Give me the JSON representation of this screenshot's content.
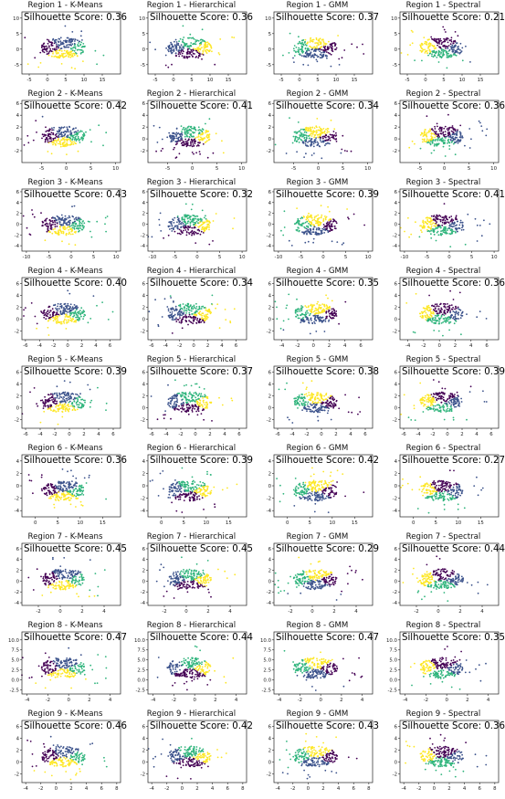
{
  "colors": {
    "purple": "#440154",
    "blue": "#3b528b",
    "green": "#2fb47c",
    "yellow": "#fde725"
  },
  "chart_data": [
    {
      "type": "scatter",
      "title": "Region 1 - K-Means",
      "score_label": "Silhouette Score: 0.36",
      "xticks": [
        "-5",
        "0",
        "5",
        "10",
        "15"
      ],
      "yticks": [
        "-5",
        "0",
        "5",
        "10"
      ],
      "xlim": [
        -7,
        20
      ],
      "ylim": [
        -8,
        12
      ]
    },
    {
      "type": "scatter",
      "title": "Region 1 - Hierarchical",
      "score_label": "Silhouette Score: 0.36",
      "xticks": [
        "-5",
        "0",
        "5",
        "10",
        "15"
      ],
      "yticks": [
        "-5",
        "0",
        "5",
        "10"
      ],
      "xlim": [
        -7,
        20
      ],
      "ylim": [
        -8,
        12
      ]
    },
    {
      "type": "scatter",
      "title": "Region 1 - GMM",
      "score_label": "Silhouette Score: 0.37",
      "xticks": [
        "-5",
        "0",
        "5",
        "10",
        "15"
      ],
      "yticks": [
        "-5",
        "0",
        "5",
        "10"
      ],
      "xlim": [
        -7,
        20
      ],
      "ylim": [
        -8,
        12
      ]
    },
    {
      "type": "scatter",
      "title": "Region 1 - Spectral",
      "score_label": "Silhouette Score: 0.21",
      "xticks": [
        "-5",
        "0",
        "5",
        "10",
        "15"
      ],
      "yticks": [
        "-5",
        "0",
        "5",
        "10"
      ],
      "xlim": [
        -7,
        20
      ],
      "ylim": [
        -8,
        12
      ]
    },
    {
      "type": "scatter",
      "title": "Region 2 - K-Means",
      "score_label": "Silhouette Score: 0.42",
      "xticks": [
        "-5",
        "0",
        "5",
        "10"
      ],
      "yticks": [
        "-2",
        "0",
        "2",
        "4",
        "6"
      ],
      "xlim": [
        -9,
        11
      ],
      "ylim": [
        -4,
        6.5
      ]
    },
    {
      "type": "scatter",
      "title": "Region 2 - Hierarchical",
      "score_label": "Silhouette Score: 0.41",
      "xticks": [
        "-5",
        "0",
        "5",
        "10"
      ],
      "yticks": [
        "-2",
        "0",
        "2",
        "4",
        "6"
      ],
      "xlim": [
        -9,
        11
      ],
      "ylim": [
        -4,
        6.5
      ]
    },
    {
      "type": "scatter",
      "title": "Region 2 - GMM",
      "score_label": "Silhouette Score: 0.34",
      "xticks": [
        "-5",
        "0",
        "5",
        "10"
      ],
      "yticks": [
        "-2",
        "0",
        "2",
        "4",
        "6"
      ],
      "xlim": [
        -9,
        11
      ],
      "ylim": [
        -4,
        6.5
      ]
    },
    {
      "type": "scatter",
      "title": "Region 2 - Spectral",
      "score_label": "Silhouette Score: 0.36",
      "xticks": [
        "-5",
        "0",
        "5",
        "10"
      ],
      "yticks": [
        "-2",
        "0",
        "2",
        "4",
        "6"
      ],
      "xlim": [
        -9,
        11
      ],
      "ylim": [
        -4,
        6.5
      ]
    },
    {
      "type": "scatter",
      "title": "Region 3 - K-Means",
      "score_label": "Silhouette Score: 0.43",
      "xticks": [
        "-10",
        "-5",
        "0",
        "5",
        "10"
      ],
      "yticks": [
        "-4",
        "-2",
        "0",
        "2",
        "4",
        "6"
      ],
      "xlim": [
        -11,
        11
      ],
      "ylim": [
        -5,
        6.5
      ]
    },
    {
      "type": "scatter",
      "title": "Region 3 - Hierarchical",
      "score_label": "Silhouette Score: 0.32",
      "xticks": [
        "-10",
        "-5",
        "0",
        "5",
        "10"
      ],
      "yticks": [
        "-4",
        "-2",
        "0",
        "2",
        "4",
        "6"
      ],
      "xlim": [
        -11,
        11
      ],
      "ylim": [
        -5,
        6.5
      ]
    },
    {
      "type": "scatter",
      "title": "Region 3 - GMM",
      "score_label": "Silhouette Score: 0.39",
      "xticks": [
        "-10",
        "-5",
        "0",
        "5",
        "10"
      ],
      "yticks": [
        "-4",
        "-2",
        "0",
        "2",
        "4",
        "6"
      ],
      "xlim": [
        -11,
        11
      ],
      "ylim": [
        -5,
        6.5
      ]
    },
    {
      "type": "scatter",
      "title": "Region 3 - Spectral",
      "score_label": "Silhouette Score: 0.41",
      "xticks": [
        "-10",
        "-5",
        "0",
        "5",
        "10"
      ],
      "yticks": [
        "-4",
        "-2",
        "0",
        "2",
        "4",
        "6"
      ],
      "xlim": [
        -11,
        11
      ],
      "ylim": [
        -5,
        6.5
      ]
    },
    {
      "type": "scatter",
      "title": "Region 4 - K-Means",
      "score_label": "Silhouette Score: 0.40",
      "xticks": [
        "-6",
        "-4",
        "-2",
        "0",
        "2",
        "4",
        "6"
      ],
      "yticks": [
        "-2",
        "0",
        "2",
        "4",
        "6"
      ],
      "xlim": [
        -6.5,
        7.5
      ],
      "ylim": [
        -3.5,
        7
      ]
    },
    {
      "type": "scatter",
      "title": "Region 4 - Hierarchical",
      "score_label": "Silhouette Score: 0.34",
      "xticks": [
        "-6",
        "-4",
        "-2",
        "0",
        "2",
        "4",
        "6"
      ],
      "yticks": [
        "-2",
        "0",
        "2",
        "4",
        "6"
      ],
      "xlim": [
        -6.5,
        7.5
      ],
      "ylim": [
        -3.5,
        7
      ]
    },
    {
      "type": "scatter",
      "title": "Region 4 - GMM",
      "score_label": "Silhouette Score: 0.35",
      "xticks": [
        "-4",
        "-2",
        "0",
        "2",
        "4",
        "6"
      ],
      "yticks": [
        "-2",
        "0",
        "2",
        "4",
        "6"
      ],
      "xlim": [
        -5,
        7.5
      ],
      "ylim": [
        -3.5,
        7
      ]
    },
    {
      "type": "scatter",
      "title": "Region 4 - Spectral",
      "score_label": "Silhouette Score: 0.36",
      "xticks": [
        "-4",
        "-2",
        "0",
        "2",
        "4",
        "6"
      ],
      "yticks": [
        "-2",
        "0",
        "2",
        "4",
        "6"
      ],
      "xlim": [
        -5,
        7.5
      ],
      "ylim": [
        -3.5,
        7
      ]
    },
    {
      "type": "scatter",
      "title": "Region 5 - K-Means",
      "score_label": "Silhouette Score: 0.39",
      "xticks": [
        "-6",
        "-4",
        "-2",
        "0",
        "2",
        "4",
        "6"
      ],
      "yticks": [
        "-2",
        "0",
        "2",
        "4",
        "6"
      ],
      "xlim": [
        -6.5,
        7
      ],
      "ylim": [
        -3.5,
        7
      ]
    },
    {
      "type": "scatter",
      "title": "Region 5 - Hierarchical",
      "score_label": "Silhouette Score: 0.37",
      "xticks": [
        "-6",
        "-4",
        "-2",
        "0",
        "2",
        "4",
        "6"
      ],
      "yticks": [
        "-2",
        "0",
        "2",
        "4",
        "6"
      ],
      "xlim": [
        -6.5,
        7
      ],
      "ylim": [
        -3.5,
        7
      ]
    },
    {
      "type": "scatter",
      "title": "Region 5 - GMM",
      "score_label": "Silhouette Score: 0.38",
      "xticks": [
        "-6",
        "-4",
        "-2",
        "0",
        "2",
        "4",
        "6"
      ],
      "yticks": [
        "-2",
        "0",
        "2",
        "4",
        "6"
      ],
      "xlim": [
        -6.5,
        7
      ],
      "ylim": [
        -3.5,
        7
      ]
    },
    {
      "type": "scatter",
      "title": "Region 5 - Spectral",
      "score_label": "Silhouette Score: 0.39",
      "xticks": [
        "-6",
        "-4",
        "-2",
        "0",
        "2",
        "4",
        "6"
      ],
      "yticks": [
        "-2",
        "0",
        "2",
        "4",
        "6"
      ],
      "xlim": [
        -6.5,
        7
      ],
      "ylim": [
        -3.5,
        7
      ]
    },
    {
      "type": "scatter",
      "title": "Region 6 - K-Means",
      "score_label": "Silhouette Score: 0.36",
      "xticks": [
        "0",
        "5",
        "10",
        "15"
      ],
      "yticks": [
        "-4",
        "-2",
        "0",
        "2",
        "4"
      ],
      "xlim": [
        -3,
        19
      ],
      "ylim": [
        -5,
        5
      ]
    },
    {
      "type": "scatter",
      "title": "Region 6 - Hierarchical",
      "score_label": "Silhouette Score: 0.39",
      "xticks": [
        "0",
        "5",
        "10",
        "15"
      ],
      "yticks": [
        "-4",
        "-2",
        "0",
        "2",
        "4"
      ],
      "xlim": [
        -3,
        19
      ],
      "ylim": [
        -5,
        5
      ]
    },
    {
      "type": "scatter",
      "title": "Region 6 - GMM",
      "score_label": "Silhouette Score: 0.42",
      "xticks": [
        "0",
        "5",
        "10",
        "15"
      ],
      "yticks": [
        "-4",
        "-2",
        "0",
        "2",
        "4"
      ],
      "xlim": [
        -3,
        19
      ],
      "ylim": [
        -5,
        5
      ]
    },
    {
      "type": "scatter",
      "title": "Region 6 - Spectral",
      "score_label": "Silhouette Score: 0.27",
      "xticks": [
        "0",
        "5",
        "10",
        "15"
      ],
      "yticks": [
        "-4",
        "-2",
        "0",
        "2",
        "4"
      ],
      "xlim": [
        -3,
        19
      ],
      "ylim": [
        -5,
        5
      ]
    },
    {
      "type": "scatter",
      "title": "Region 7 - K-Means",
      "score_label": "Silhouette Score: 0.45",
      "xticks": [
        "-2",
        "0",
        "2",
        "4"
      ],
      "yticks": [
        "-4",
        "-2",
        "0",
        "2",
        "4",
        "6"
      ],
      "xlim": [
        -3.5,
        5.5
      ],
      "ylim": [
        -4.5,
        7
      ]
    },
    {
      "type": "scatter",
      "title": "Region 7 - Hierarchical",
      "score_label": "Silhouette Score: 0.45",
      "xticks": [
        "-2",
        "0",
        "2",
        "4"
      ],
      "yticks": [
        "-4",
        "-2",
        "0",
        "2",
        "4",
        "6"
      ],
      "xlim": [
        -3.5,
        5.5
      ],
      "ylim": [
        -4.5,
        7
      ]
    },
    {
      "type": "scatter",
      "title": "Region 7 - GMM",
      "score_label": "Silhouette Score: 0.29",
      "xticks": [
        "-2",
        "0",
        "2",
        "4"
      ],
      "yticks": [
        "-4",
        "-2",
        "0",
        "2",
        "4",
        "6"
      ],
      "xlim": [
        -3.5,
        5.5
      ],
      "ylim": [
        -4.5,
        7
      ]
    },
    {
      "type": "scatter",
      "title": "Region 7 - Spectral",
      "score_label": "Silhouette Score: 0.44",
      "xticks": [
        "-2",
        "0",
        "2",
        "4"
      ],
      "yticks": [
        "-4",
        "-2",
        "0",
        "2",
        "4",
        "6"
      ],
      "xlim": [
        -3.5,
        5.5
      ],
      "ylim": [
        -4.5,
        7
      ]
    },
    {
      "type": "scatter",
      "title": "Region 8 - K-Means",
      "score_label": "Silhouette Score: 0.47",
      "xticks": [
        "-4",
        "-2",
        "0",
        "2",
        "4"
      ],
      "yticks": [
        "-2.5",
        "0.0",
        "2.5",
        "5.0",
        "7.5",
        "10.0"
      ],
      "xlim": [
        -4.5,
        5
      ],
      "ylim": [
        -3.5,
        12
      ]
    },
    {
      "type": "scatter",
      "title": "Region 8 - Hierarchical",
      "score_label": "Silhouette Score: 0.44",
      "xticks": [
        "-4",
        "-2",
        "0",
        "2",
        "4"
      ],
      "yticks": [
        "-2.5",
        "0.0",
        "2.5",
        "5.0",
        "7.5",
        "10.0"
      ],
      "xlim": [
        -4.5,
        5
      ],
      "ylim": [
        -3.5,
        12
      ]
    },
    {
      "type": "scatter",
      "title": "Region 8 - GMM",
      "score_label": "Silhouette Score: 0.47",
      "xticks": [
        "-4",
        "-2",
        "0",
        "2",
        "4"
      ],
      "yticks": [
        "-2.5",
        "0.0",
        "2.5",
        "5.0",
        "7.5",
        "10.0"
      ],
      "xlim": [
        -4.5,
        5
      ],
      "ylim": [
        -3.5,
        12
      ]
    },
    {
      "type": "scatter",
      "title": "Region 8 - Spectral",
      "score_label": "Silhouette Score: 0.35",
      "xticks": [
        "-4",
        "-2",
        "0",
        "2",
        "4"
      ],
      "yticks": [
        "-2.5",
        "0.0",
        "2.5",
        "5.0",
        "7.5",
        "10.0"
      ],
      "xlim": [
        -4.5,
        5
      ],
      "ylim": [
        -3.5,
        12
      ]
    },
    {
      "type": "scatter",
      "title": "Region 9 - K-Means",
      "score_label": "Silhouette Score: 0.46",
      "xticks": [
        "-4",
        "-2",
        "0",
        "2",
        "4",
        "6",
        "8"
      ],
      "yticks": [
        "-2",
        "0",
        "2",
        "4",
        "6"
      ],
      "xlim": [
        -4.5,
        8.5
      ],
      "ylim": [
        -3.5,
        7
      ]
    },
    {
      "type": "scatter",
      "title": "Region 9 - Hierarchical",
      "score_label": "Silhouette Score: 0.42",
      "xticks": [
        "-4",
        "-2",
        "0",
        "2",
        "4",
        "6",
        "8"
      ],
      "yticks": [
        "-2",
        "0",
        "2",
        "4",
        "6"
      ],
      "xlim": [
        -4.5,
        8.5
      ],
      "ylim": [
        -3.5,
        7
      ]
    },
    {
      "type": "scatter",
      "title": "Region 9 - GMM",
      "score_label": "Silhouette Score: 0.43",
      "xticks": [
        "-4",
        "-2",
        "0",
        "2",
        "4",
        "6",
        "8"
      ],
      "yticks": [
        "-2",
        "0",
        "2",
        "4",
        "6"
      ],
      "xlim": [
        -4.5,
        8.5
      ],
      "ylim": [
        -3.5,
        7
      ]
    },
    {
      "type": "scatter",
      "title": "Region 9 - Spectral",
      "score_label": "Silhouette Score: 0.36",
      "xticks": [
        "-4",
        "-2",
        "0",
        "2",
        "4",
        "6",
        "8"
      ],
      "yticks": [
        "-2",
        "0",
        "2",
        "4",
        "6"
      ],
      "xlim": [
        -4.5,
        8.5
      ],
      "ylim": [
        -3.5,
        7
      ]
    }
  ]
}
